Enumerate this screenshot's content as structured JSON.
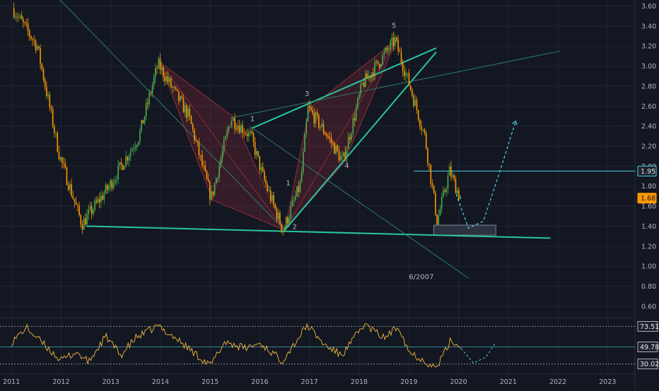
{
  "chart_data": [
    {
      "type": "candlestick",
      "title": "",
      "xlabel": "",
      "ylabel": "",
      "x_ticks": [
        "2011",
        "2012",
        "2013",
        "2014",
        "2015",
        "2016",
        "2017",
        "2018",
        "2019",
        "2020",
        "2021",
        "2022",
        "2023"
      ],
      "y_ticks": [
        "3.60",
        "3.40",
        "3.20",
        "3.00",
        "2.80",
        "2.60",
        "2.40",
        "2.20",
        "2.00",
        "1.80",
        "1.60",
        "1.40",
        "1.20",
        "1.00",
        "0.80",
        "0.60"
      ],
      "ylim": [
        0.5,
        3.66
      ],
      "xlim": [
        2010.77,
        2023.55
      ],
      "grid": true,
      "price_labels": [
        {
          "text": "1.95",
          "value": 1.95,
          "color": "#1e222d",
          "text_color": "#e0e3eb",
          "border": "#4dd0e1"
        },
        {
          "text": "1.68",
          "value": 1.68,
          "color": "#ff9800",
          "text_color": "#131722",
          "border": "#ff9800"
        }
      ],
      "key_points": [
        {
          "x": 2011.05,
          "y": 3.58
        },
        {
          "x": 2011.55,
          "y": 3.2
        },
        {
          "x": 2012.0,
          "y": 2.1
        },
        {
          "x": 2012.45,
          "y": 1.42
        },
        {
          "x": 2013.0,
          "y": 1.8
        },
        {
          "x": 2013.6,
          "y": 2.3
        },
        {
          "x": 2013.98,
          "y": 3.02
        },
        {
          "x": 2014.6,
          "y": 2.5
        },
        {
          "x": 2015.05,
          "y": 1.68
        },
        {
          "x": 2015.45,
          "y": 2.48
        },
        {
          "x": 2015.85,
          "y": 2.3
        },
        {
          "x": 2016.1,
          "y": 1.88
        },
        {
          "x": 2016.5,
          "y": 1.36
        },
        {
          "x": 2016.85,
          "y": 1.82
        },
        {
          "x": 2017.0,
          "y": 2.58
        },
        {
          "x": 2017.4,
          "y": 2.3
        },
        {
          "x": 2017.7,
          "y": 2.04
        },
        {
          "x": 2018.1,
          "y": 2.82
        },
        {
          "x": 2018.4,
          "y": 3.02
        },
        {
          "x": 2018.75,
          "y": 3.26
        },
        {
          "x": 2019.05,
          "y": 2.8
        },
        {
          "x": 2019.35,
          "y": 2.3
        },
        {
          "x": 2019.6,
          "y": 1.45
        },
        {
          "x": 2019.85,
          "y": 1.95
        },
        {
          "x": 2020.05,
          "y": 1.7
        }
      ],
      "wave_labels": [
        {
          "text": "1",
          "x": 2015.85,
          "y": 2.45
        },
        {
          "text": "1",
          "x": 2016.57,
          "y": 1.81
        },
        {
          "text": "2",
          "x": 2016.7,
          "y": 1.37
        },
        {
          "text": "3",
          "x": 2016.95,
          "y": 2.7
        },
        {
          "text": "4",
          "x": 2017.75,
          "y": 1.98
        },
        {
          "text": "5",
          "x": 2018.7,
          "y": 3.38
        },
        {
          "text": "6/2007",
          "x": 2019.25,
          "y": 0.87
        }
      ],
      "trend_lines": [
        {
          "x1": 2012.5,
          "y1": 1.4,
          "x2": 2021.85,
          "y2": 1.28,
          "color": "#26c6a0",
          "width": 2
        },
        {
          "x1": 2015.85,
          "y1": 2.38,
          "x2": 2019.55,
          "y2": 3.18,
          "color": "#26c6a0",
          "width": 2
        },
        {
          "x1": 2016.5,
          "y1": 1.36,
          "x2": 2019.55,
          "y2": 3.14,
          "color": "#26c6a0",
          "width": 2
        },
        {
          "x1": 2011.9,
          "y1": 3.7,
          "x2": 2016.5,
          "y2": 1.36,
          "color": "#2e7d6b",
          "width": 1
        },
        {
          "x1": 2015.4,
          "y1": 2.48,
          "x2": 2022.05,
          "y2": 3.15,
          "color": "#2e7d6b",
          "width": 1
        },
        {
          "x1": 2015.85,
          "y1": 2.38,
          "x2": 2020.2,
          "y2": 0.88,
          "color": "#2e7d6b",
          "width": 1
        },
        {
          "x1": 2019.1,
          "y1": 1.95,
          "x2": 2023.55,
          "y2": 1.95,
          "color": "#4dd0e1",
          "width": 1
        }
      ],
      "patterns": [
        {
          "points": [
            [
              2013.98,
              3.04
            ],
            [
              2015.45,
              2.5
            ],
            [
              2016.5,
              1.36
            ],
            [
              2015.05,
              1.66
            ]
          ],
          "color": "#b2333f"
        },
        {
          "points": [
            [
              2016.5,
              1.36
            ],
            [
              2017.7,
              2.04
            ],
            [
              2018.75,
              3.26
            ],
            [
              2017.0,
              2.58
            ]
          ],
          "color": "#b2333f"
        }
      ],
      "projection": [
        [
          2019.95,
          1.72
        ],
        [
          2020.2,
          1.38
        ],
        [
          2020.5,
          1.45
        ],
        [
          2020.8,
          1.9
        ],
        [
          2021.15,
          2.45
        ]
      ],
      "zone": {
        "x1": 2019.5,
        "x2": 2020.75,
        "y1": 1.31,
        "y2": 1.41
      }
    },
    {
      "type": "line",
      "title": "",
      "name": "",
      "ylabel": "",
      "level_labels": [
        "73.51",
        "49.78",
        "30.02"
      ],
      "levels": [
        73.51,
        49.78,
        30.02
      ],
      "ylim": [
        20,
        82
      ],
      "key_points": [
        {
          "x": 2011.0,
          "y": 55
        },
        {
          "x": 2011.3,
          "y": 72
        },
        {
          "x": 2011.7,
          "y": 50
        },
        {
          "x": 2012.0,
          "y": 34
        },
        {
          "x": 2012.3,
          "y": 44
        },
        {
          "x": 2012.55,
          "y": 32
        },
        {
          "x": 2012.9,
          "y": 62
        },
        {
          "x": 2013.2,
          "y": 40
        },
        {
          "x": 2013.5,
          "y": 60
        },
        {
          "x": 2013.95,
          "y": 74
        },
        {
          "x": 2014.3,
          "y": 60
        },
        {
          "x": 2014.7,
          "y": 42
        },
        {
          "x": 2015.0,
          "y": 28
        },
        {
          "x": 2015.3,
          "y": 56
        },
        {
          "x": 2015.7,
          "y": 48
        },
        {
          "x": 2016.0,
          "y": 54
        },
        {
          "x": 2016.45,
          "y": 34
        },
        {
          "x": 2016.75,
          "y": 58
        },
        {
          "x": 2016.95,
          "y": 75
        },
        {
          "x": 2017.3,
          "y": 52
        },
        {
          "x": 2017.65,
          "y": 40
        },
        {
          "x": 2018.1,
          "y": 76
        },
        {
          "x": 2018.5,
          "y": 60
        },
        {
          "x": 2018.8,
          "y": 74
        },
        {
          "x": 2019.0,
          "y": 44
        },
        {
          "x": 2019.25,
          "y": 36
        },
        {
          "x": 2019.55,
          "y": 25
        },
        {
          "x": 2019.85,
          "y": 58
        },
        {
          "x": 2020.05,
          "y": 48
        }
      ],
      "projection": [
        [
          2020.05,
          48
        ],
        [
          2020.3,
          31
        ],
        [
          2020.55,
          38
        ],
        [
          2020.75,
          55
        ]
      ]
    }
  ]
}
